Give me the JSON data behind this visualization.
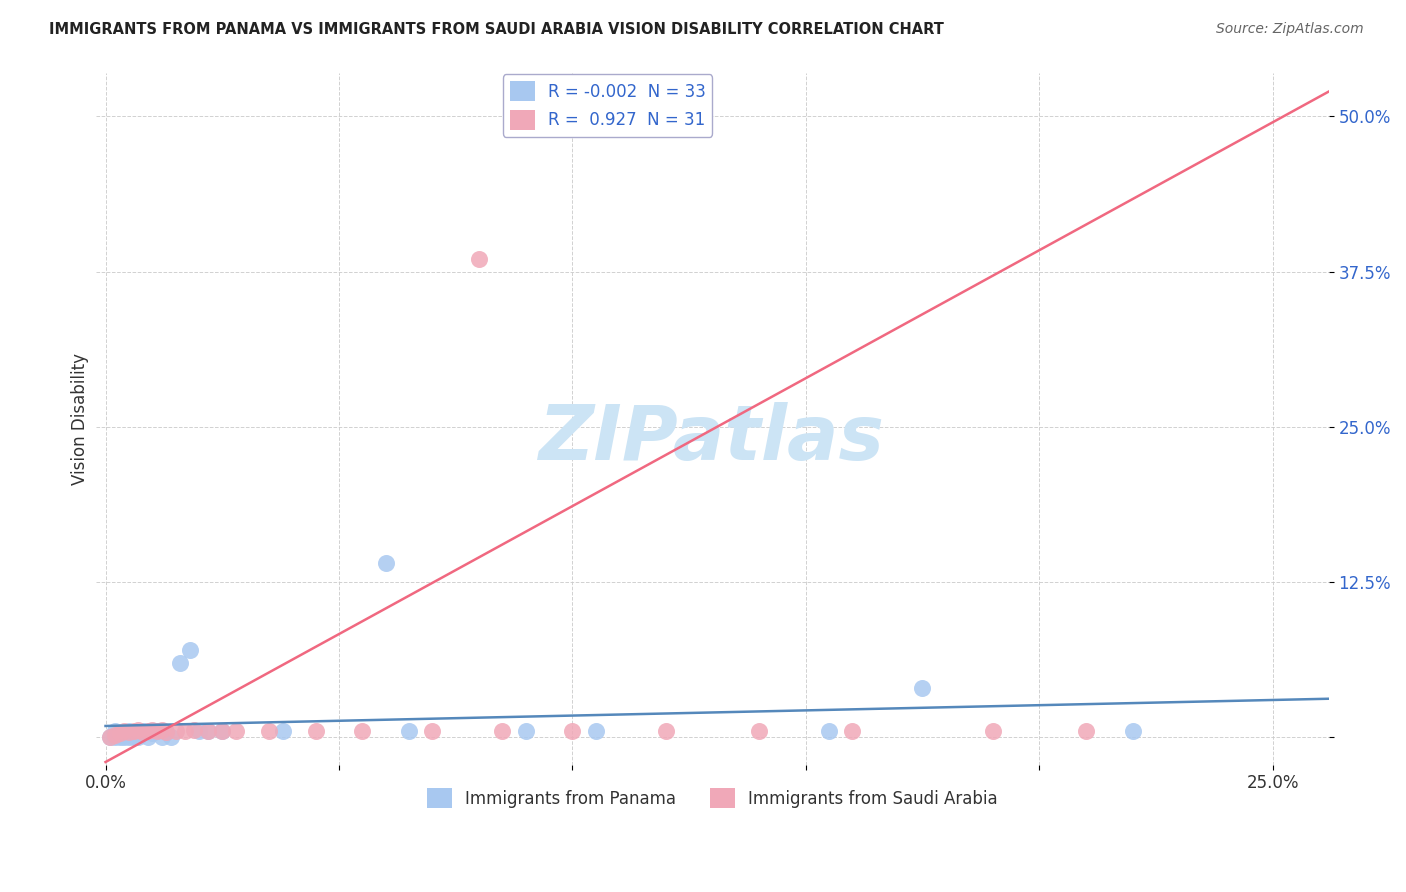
{
  "title": "IMMIGRANTS FROM PANAMA VS IMMIGRANTS FROM SAUDI ARABIA VISION DISABILITY CORRELATION CHART",
  "source": "Source: ZipAtlas.com",
  "ylabel": "Vision Disability",
  "y_ticks": [
    0.0,
    0.125,
    0.25,
    0.375,
    0.5
  ],
  "y_tick_labels": [
    "",
    "12.5%",
    "25.0%",
    "37.5%",
    "50.0%"
  ],
  "x_tick_positions": [
    0.0,
    0.05,
    0.1,
    0.15,
    0.2,
    0.25
  ],
  "x_tick_labels": [
    "0.0%",
    "",
    "",
    "",
    "",
    "25.0%"
  ],
  "xlim": [
    -0.002,
    0.262
  ],
  "ylim": [
    -0.022,
    0.535
  ],
  "legend_R1": "-0.002",
  "legend_N1": "33",
  "legend_R2": "0.927",
  "legend_N2": "31",
  "color_panama": "#a8c8f0",
  "color_saudi": "#f0a8b8",
  "color_line_panama": "#5588bb",
  "color_line_saudi": "#f06880",
  "watermark": "ZIPatlas",
  "watermark_color": "#cce4f5",
  "panama_line_slope": 0.0,
  "panama_line_intercept": 0.005,
  "saudi_line_x0": 0.0,
  "saudi_line_y0": -0.02,
  "saudi_line_x1": 0.262,
  "saudi_line_y1": 0.52,
  "panama_scatter_x": [
    0.001,
    0.002,
    0.002,
    0.003,
    0.003,
    0.004,
    0.004,
    0.005,
    0.005,
    0.006,
    0.006,
    0.007,
    0.007,
    0.008,
    0.009,
    0.01,
    0.011,
    0.012,
    0.013,
    0.014,
    0.016,
    0.018,
    0.022,
    0.038,
    0.06,
    0.065,
    0.09,
    0.105,
    0.155,
    0.175,
    0.22,
    0.02,
    0.025
  ],
  "panama_scatter_y": [
    0.0,
    0.005,
    0.0,
    0.002,
    0.0,
    0.003,
    0.0,
    0.005,
    0.0,
    0.004,
    0.0,
    0.003,
    0.0,
    0.005,
    0.0,
    0.003,
    0.005,
    0.0,
    0.004,
    0.0,
    0.06,
    0.07,
    0.005,
    0.005,
    0.14,
    0.005,
    0.005,
    0.005,
    0.005,
    0.04,
    0.005,
    0.005,
    0.005
  ],
  "saudi_scatter_x": [
    0.001,
    0.002,
    0.003,
    0.004,
    0.005,
    0.006,
    0.007,
    0.008,
    0.009,
    0.01,
    0.011,
    0.012,
    0.013,
    0.015,
    0.017,
    0.019,
    0.022,
    0.025,
    0.028,
    0.035,
    0.045,
    0.055,
    0.07,
    0.085,
    0.1,
    0.12,
    0.14,
    0.16,
    0.19,
    0.21,
    0.08
  ],
  "saudi_scatter_y": [
    0.0,
    0.002,
    0.003,
    0.005,
    0.004,
    0.005,
    0.006,
    0.004,
    0.005,
    0.006,
    0.005,
    0.006,
    0.004,
    0.005,
    0.005,
    0.006,
    0.005,
    0.005,
    0.005,
    0.005,
    0.005,
    0.005,
    0.005,
    0.005,
    0.005,
    0.005,
    0.005,
    0.005,
    0.005,
    0.005,
    0.385
  ]
}
